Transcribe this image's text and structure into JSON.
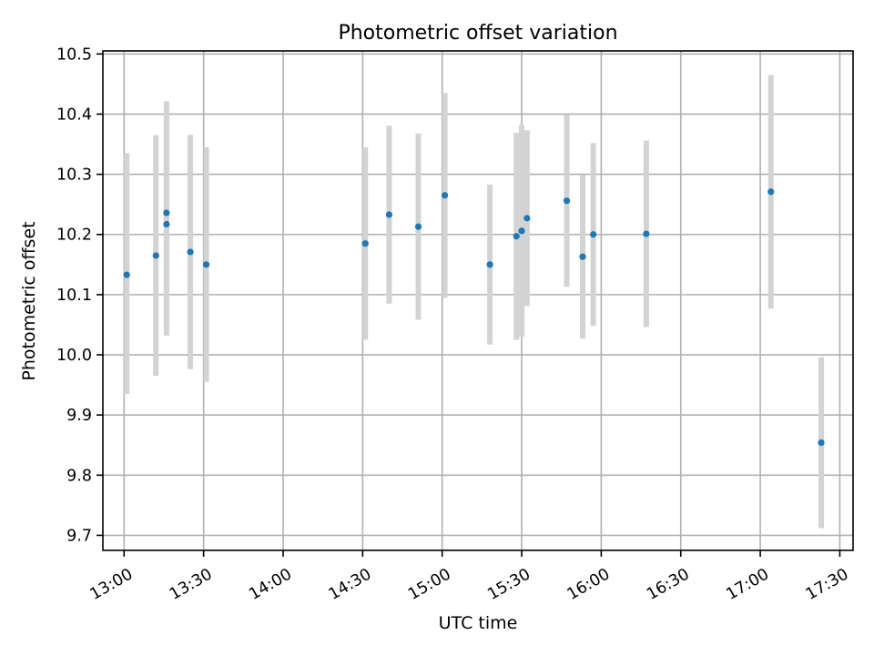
{
  "chart_data": {
    "type": "scatter",
    "title": "Photometric offset variation",
    "xlabel": "UTC time",
    "ylabel": "Photometric offset",
    "xlim": [
      "12:52",
      "17:35"
    ],
    "ylim": [
      9.675,
      10.505
    ],
    "grid": true,
    "x_ticks": [
      "13:00",
      "13:30",
      "14:00",
      "14:30",
      "15:00",
      "15:30",
      "16:00",
      "16:30",
      "17:00",
      "17:30"
    ],
    "y_ticks": [
      "9.7",
      "9.8",
      "9.9",
      "10.0",
      "10.1",
      "10.2",
      "10.3",
      "10.4",
      "10.5"
    ],
    "errorbar_color": "#d3d3d3",
    "point_color": "#1f77b4",
    "points": [
      {
        "x": "13:01",
        "y": 10.133,
        "ylo": 9.935,
        "yhi": 10.335
      },
      {
        "x": "13:12",
        "y": 10.165,
        "ylo": 9.965,
        "yhi": 10.365
      },
      {
        "x": "13:16",
        "y": 10.217,
        "ylo": 10.032,
        "yhi": 10.402
      },
      {
        "x": "13:16",
        "y": 10.236,
        "ylo": 10.051,
        "yhi": 10.421
      },
      {
        "x": "13:25",
        "y": 10.171,
        "ylo": 9.976,
        "yhi": 10.366
      },
      {
        "x": "13:31",
        "y": 10.15,
        "ylo": 9.955,
        "yhi": 10.345
      },
      {
        "x": "14:31",
        "y": 10.185,
        "ylo": 10.025,
        "yhi": 10.345
      },
      {
        "x": "14:40",
        "y": 10.233,
        "ylo": 10.085,
        "yhi": 10.381
      },
      {
        "x": "14:51",
        "y": 10.213,
        "ylo": 10.058,
        "yhi": 10.368
      },
      {
        "x": "15:01",
        "y": 10.265,
        "ylo": 10.095,
        "yhi": 10.435
      },
      {
        "x": "15:18",
        "y": 10.15,
        "ylo": 10.017,
        "yhi": 10.283
      },
      {
        "x": "15:28",
        "y": 10.197,
        "ylo": 10.025,
        "yhi": 10.369
      },
      {
        "x": "15:30",
        "y": 10.206,
        "ylo": 10.03,
        "yhi": 10.382
      },
      {
        "x": "15:32",
        "y": 10.227,
        "ylo": 10.081,
        "yhi": 10.373
      },
      {
        "x": "15:47",
        "y": 10.256,
        "ylo": 10.113,
        "yhi": 10.399
      },
      {
        "x": "15:53",
        "y": 10.163,
        "ylo": 10.027,
        "yhi": 10.299
      },
      {
        "x": "15:57",
        "y": 10.2,
        "ylo": 10.048,
        "yhi": 10.352
      },
      {
        "x": "16:17",
        "y": 10.201,
        "ylo": 10.046,
        "yhi": 10.356
      },
      {
        "x": "17:04",
        "y": 10.271,
        "ylo": 10.077,
        "yhi": 10.465
      },
      {
        "x": "17:23",
        "y": 9.854,
        "ylo": 9.712,
        "yhi": 9.996
      }
    ]
  }
}
